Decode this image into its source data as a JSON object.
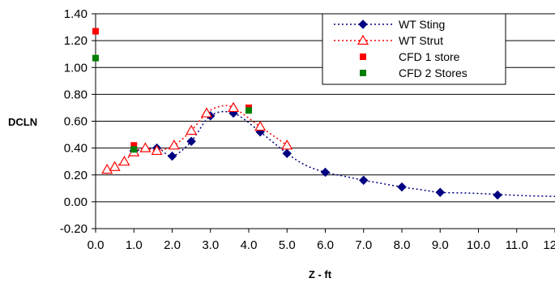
{
  "chart_data": {
    "type": "scatter",
    "title": "",
    "xlabel": "Z - ft",
    "ylabel": "DCLN",
    "xlim": [
      0,
      12
    ],
    "ylim": [
      -0.2,
      1.4
    ],
    "x_ticks": [
      0,
      1,
      2,
      3,
      4,
      5,
      6,
      7,
      8,
      9,
      10,
      11,
      12
    ],
    "x_tick_labels": [
      "0.0",
      "1.0",
      "2.0",
      "3.0",
      "4.0",
      "5.0",
      "6.0",
      "7.0",
      "8.0",
      "9.0",
      "10.0",
      "11.0",
      "12.0"
    ],
    "y_ticks": [
      -0.2,
      0,
      0.2,
      0.4,
      0.6,
      0.8,
      1.0,
      1.2,
      1.4
    ],
    "y_tick_labels": [
      "-0.20",
      "0.00",
      "0.20",
      "0.40",
      "0.60",
      "0.80",
      "1.00",
      "1.20",
      "1.40"
    ],
    "grid": "horizontal major",
    "legend_position": "top-right",
    "series": [
      {
        "name": "WT Sting",
        "color": "#000080",
        "marker": "diamond",
        "line": "dotted",
        "x": [
          1.0,
          1.6,
          2.0,
          2.5,
          3.0,
          3.6,
          4.3,
          5.0,
          6.0,
          7.0,
          8.0,
          9.0,
          10.5
        ],
        "y": [
          0.38,
          0.4,
          0.34,
          0.45,
          0.64,
          0.66,
          0.52,
          0.36,
          0.22,
          0.16,
          0.11,
          0.07,
          0.05
        ],
        "curve_x": [
          1.0,
          1.6,
          2.0,
          2.5,
          3.0,
          3.6,
          4.3,
          5.0,
          5.5,
          6.0,
          6.5,
          7.0,
          7.5,
          8.0,
          8.5,
          9.0,
          9.75,
          10.5,
          11.25,
          12.0
        ],
        "curve_y": [
          0.38,
          0.4,
          0.34,
          0.45,
          0.64,
          0.66,
          0.52,
          0.36,
          0.27,
          0.22,
          0.19,
          0.16,
          0.135,
          0.11,
          0.09,
          0.07,
          0.065,
          0.055,
          0.045,
          0.04
        ]
      },
      {
        "name": "WT Strut",
        "color": "#FF0000",
        "marker": "triangle-open",
        "line": "dotted",
        "x": [
          0.3,
          0.5,
          0.75,
          1.0,
          1.3,
          1.6,
          2.05,
          2.5,
          2.9,
          3.6,
          4.3,
          5.0
        ],
        "y": [
          0.24,
          0.26,
          0.3,
          0.37,
          0.4,
          0.38,
          0.42,
          0.53,
          0.66,
          0.7,
          0.56,
          0.42
        ],
        "curve_x": [
          0.3,
          0.5,
          0.75,
          1.0,
          1.3,
          1.6,
          2.05,
          2.5,
          2.9,
          3.25,
          3.6,
          4.3,
          5.0
        ],
        "curve_y": [
          0.24,
          0.26,
          0.3,
          0.37,
          0.4,
          0.38,
          0.42,
          0.53,
          0.66,
          0.71,
          0.7,
          0.56,
          0.42
        ]
      },
      {
        "name": "CFD 1 store",
        "color": "#FF0000",
        "marker": "square",
        "line": "none",
        "x": [
          0.0,
          1.0,
          4.0
        ],
        "y": [
          1.27,
          0.42,
          0.7
        ]
      },
      {
        "name": "CFD 2 Stores",
        "color": "#008000",
        "marker": "square",
        "line": "none",
        "x": [
          0.0,
          1.0,
          4.0
        ],
        "y": [
          1.07,
          0.39,
          0.68
        ]
      }
    ]
  }
}
